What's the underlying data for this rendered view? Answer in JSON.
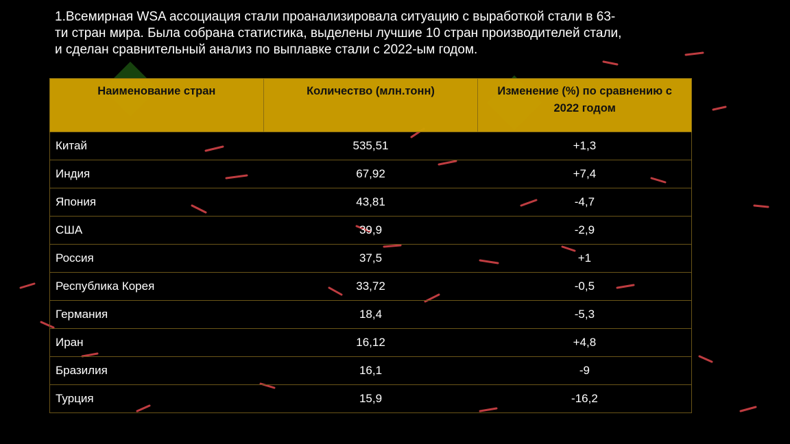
{
  "intro": {
    "lines": [
      "1.Всемирная WSA ассоциация стали проанализировала ситуацию с выработкой стали в 63-",
      "ти стран мира. Была собрана статистика, выделены лучшие 10 стран производителей стали,",
      "и сделан сравнительный анализ по выплавке стали с 2022-ым годом."
    ]
  },
  "table": {
    "header": [
      "Наименование стран",
      "Количество (млн.тонн)",
      "Изменение (%) по сравнению с 2022 годом"
    ],
    "rows": [
      [
        "Китай",
        "535,51",
        "+1,3"
      ],
      [
        "Индия",
        "67,92",
        "+7,4"
      ],
      [
        "Япония",
        "43,81",
        "-4,7"
      ],
      [
        "США",
        "39,9",
        "-2,9"
      ],
      [
        "Россия",
        "37,5",
        "+1"
      ],
      [
        "Республика Корея",
        "33,72",
        "-0,5"
      ],
      [
        "Германия",
        "18,4",
        "-5,3"
      ],
      [
        "Иран",
        "16,12",
        "+4,8"
      ],
      [
        "Бразилия",
        "16,1",
        "-9"
      ],
      [
        "Турция",
        "15,9",
        "-16,2"
      ]
    ]
  }
}
